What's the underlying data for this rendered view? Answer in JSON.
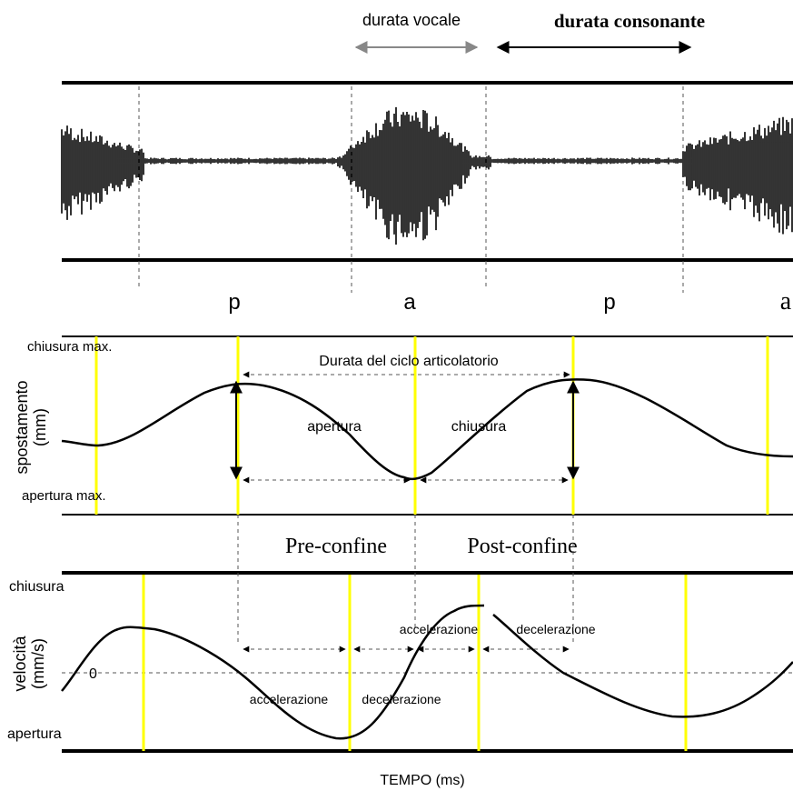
{
  "top": {
    "vowel_duration_label": "durata vocale",
    "consonant_duration_label": "durata consonante",
    "segments": [
      "p",
      "a",
      "p",
      "a"
    ]
  },
  "displacement": {
    "ylabel_line1": "spostamento",
    "ylabel_line2": "(mm)",
    "max_closure_label": "chiusura max.",
    "max_opening_label": "apertura max.",
    "cycle_label": "Durata del ciclo articolatorio",
    "opening_label": "apertura",
    "closing_label": "chiusura"
  },
  "boundaries": {
    "pre_label": "Pre-confine",
    "post_label": "Post-confine"
  },
  "velocity": {
    "ylabel_line1": "velocità",
    "ylabel_line2": "(mm/s)",
    "closure_label": "chiusura",
    "zero_label": "0",
    "opening_label": "apertura",
    "acc1": "accelerazione",
    "dec1": "decelerazione",
    "acc2": "accelerazione",
    "dec2": "decelerazione"
  },
  "xlabel": "TEMPO (ms)",
  "colors": {
    "line": "#000000",
    "marker": "#ffff00",
    "arrow_grey": "#888888",
    "dash": "#555555"
  }
}
